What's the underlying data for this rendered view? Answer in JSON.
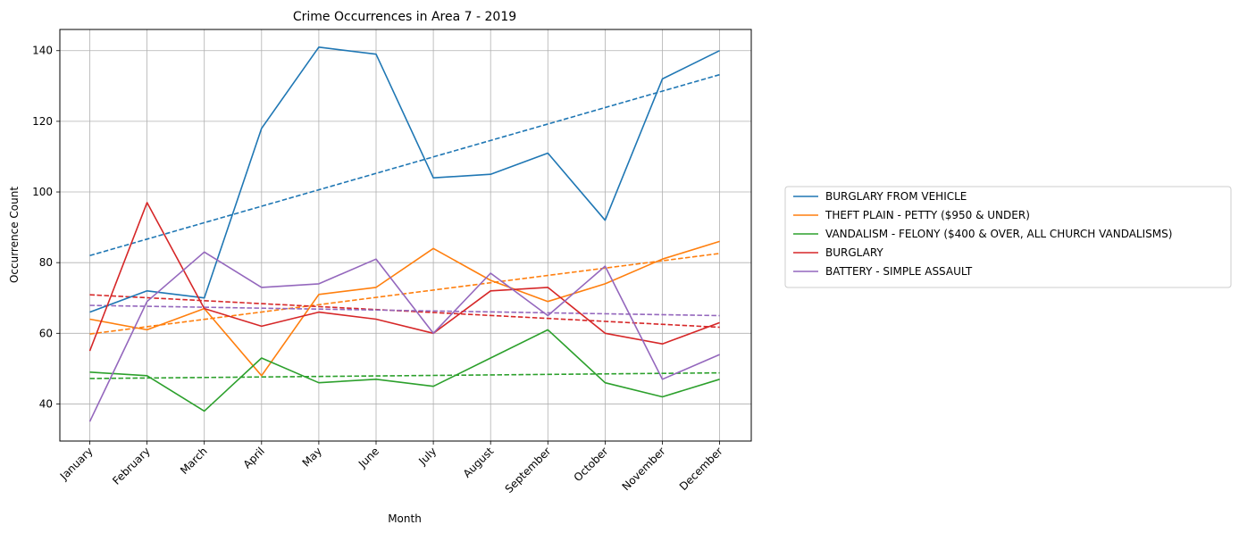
{
  "chart_data": {
    "type": "line",
    "title": "Crime Occurrences in Area 7 - 2019",
    "xlabel": "Month",
    "ylabel": "Occurrence Count",
    "categories": [
      "January",
      "February",
      "March",
      "April",
      "May",
      "June",
      "July",
      "August",
      "September",
      "October",
      "November",
      "December"
    ],
    "ylim": [
      29.5,
      146
    ],
    "yticks": [
      40,
      60,
      80,
      100,
      120,
      140
    ],
    "grid": true,
    "legend_position": "outside-right",
    "trendlines": "dashed linear fit per series",
    "series": [
      {
        "name": "BURGLARY FROM VEHICLE",
        "color": "#1f77b4",
        "values": [
          66,
          72,
          70,
          118,
          141,
          139,
          104,
          105,
          111,
          92,
          132,
          140
        ],
        "trend": [
          82,
          133.2
        ]
      },
      {
        "name": "THEFT PLAIN - PETTY ($950 & UNDER)",
        "color": "#ff7f0e",
        "values": [
          64,
          61,
          67,
          48,
          71,
          73,
          84,
          75,
          69,
          74,
          81,
          86
        ],
        "trend": [
          59.8,
          82.6
        ]
      },
      {
        "name": "VANDALISM - FELONY ($400 & OVER, ALL CHURCH VANDALISMS)",
        "color": "#2ca02c",
        "values": [
          49,
          48,
          38,
          53,
          46,
          47,
          45,
          53,
          61,
          46,
          42,
          47
        ],
        "trend": [
          47.2,
          48.8
        ]
      },
      {
        "name": "BURGLARY",
        "color": "#d62728",
        "values": [
          55,
          97,
          67,
          62,
          66,
          64,
          60,
          72,
          73,
          60,
          57,
          63
        ],
        "trend": [
          70.9,
          61.7
        ]
      },
      {
        "name": "BATTERY - SIMPLE ASSAULT",
        "color": "#9467bd",
        "values": [
          35,
          69,
          83,
          73,
          74,
          81,
          60,
          77,
          65,
          79,
          47,
          54
        ],
        "trend": [
          67.9,
          65
        ]
      }
    ]
  }
}
